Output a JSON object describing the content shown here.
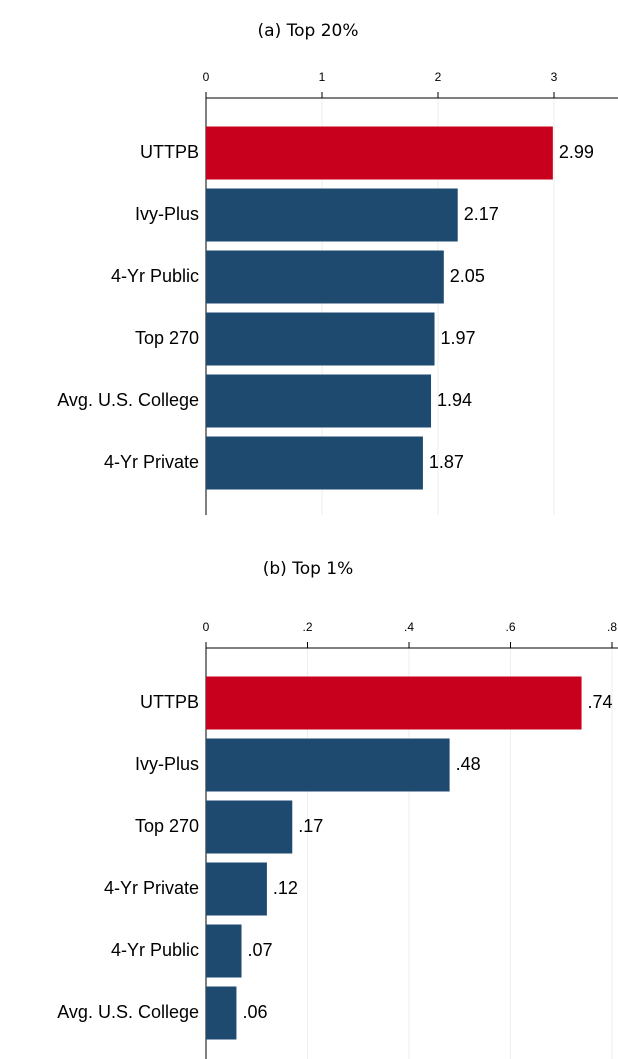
{
  "chart_data": [
    {
      "type": "bar",
      "orientation": "horizontal",
      "title": "(a) Top 20%",
      "categories": [
        "UTTPB",
        "Ivy-Plus",
        "4-Yr Public",
        "Top 270",
        "Avg. U.S. College",
        "4-Yr Private"
      ],
      "values": [
        2.99,
        2.17,
        2.05,
        1.97,
        1.94,
        1.87
      ],
      "colors": [
        "#c8001e",
        "#1f4a70",
        "#1f4a70",
        "#1f4a70",
        "#1f4a70",
        "#1f4a70"
      ],
      "xlim": [
        0,
        3.5
      ],
      "xticks": [
        0,
        1,
        2,
        3
      ],
      "grid": true
    },
    {
      "type": "bar",
      "orientation": "horizontal",
      "title": "(b) Top 1%",
      "categories": [
        "UTTPB",
        "Ivy-Plus",
        "Top 270",
        "4-Yr Private",
        "4-Yr Public",
        "Avg. U.S. College"
      ],
      "values": [
        0.74,
        0.48,
        0.17,
        0.12,
        0.07,
        0.06
      ],
      "value_labels": [
        ".74",
        ".48",
        ".17",
        ".12",
        ".07",
        ".06"
      ],
      "colors": [
        "#c8001e",
        "#1f4a70",
        "#1f4a70",
        "#1f4a70",
        "#1f4a70",
        "#1f4a70"
      ],
      "xlim": [
        0,
        0.8
      ],
      "xticks": [
        0,
        {
          "value": 0.2,
          "label": ".2"
        },
        {
          "value": 0.4,
          "label": ".4"
        },
        {
          "value": 0.6,
          "label": ".6"
        },
        {
          "value": 0.8,
          "label": ".8"
        }
      ],
      "grid": true
    }
  ]
}
